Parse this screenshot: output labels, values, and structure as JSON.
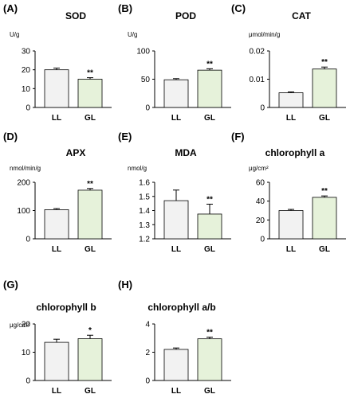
{
  "colors": {
    "LL": "#f2f2f2",
    "GL": "#e6f2da",
    "stroke": "#000000"
  },
  "chart_data": [
    {
      "type": "bar",
      "panel": "(A)",
      "title": "SOD",
      "ylabel": "U/g",
      "categories": [
        "LL",
        "GL"
      ],
      "values": [
        20,
        15
      ],
      "errors": [
        0.9,
        0.8
      ],
      "significance": [
        "",
        "**"
      ],
      "ylim": [
        0,
        30
      ],
      "yticks": [
        0,
        10,
        20,
        30
      ]
    },
    {
      "type": "bar",
      "panel": "(B)",
      "title": "POD",
      "ylabel": "U/g",
      "categories": [
        "LL",
        "GL"
      ],
      "values": [
        49,
        66
      ],
      "errors": [
        2.0,
        2.5
      ],
      "significance": [
        "",
        "**"
      ],
      "ylim": [
        0,
        100
      ],
      "yticks": [
        0,
        50,
        100
      ]
    },
    {
      "type": "bar",
      "panel": "(C)",
      "title": "CAT",
      "ylabel": "μmol/min/g",
      "categories": [
        "LL",
        "GL"
      ],
      "values": [
        0.0052,
        0.0136
      ],
      "errors": [
        0.0003,
        0.0007
      ],
      "significance": [
        "",
        "**"
      ],
      "ylim": [
        0,
        0.02
      ],
      "yticks": [
        0,
        0.01,
        0.02
      ]
    },
    {
      "type": "bar",
      "panel": "(D)",
      "title": "APX",
      "ylabel": "nmol/min/g",
      "categories": [
        "LL",
        "GL"
      ],
      "values": [
        103,
        172
      ],
      "errors": [
        4,
        6
      ],
      "significance": [
        "",
        "**"
      ],
      "ylim": [
        0,
        200
      ],
      "yticks": [
        0,
        100,
        200
      ]
    },
    {
      "type": "bar",
      "panel": "(E)",
      "title": "MDA",
      "ylabel": "nmol/g",
      "categories": [
        "LL",
        "GL"
      ],
      "values": [
        1.47,
        1.375
      ],
      "errors": [
        0.075,
        0.07
      ],
      "significance": [
        "",
        "**"
      ],
      "ylim": [
        1.2,
        1.6
      ],
      "yticks": [
        1.2,
        1.3,
        1.4,
        1.5,
        1.6
      ]
    },
    {
      "type": "bar",
      "panel": "(F)",
      "title": "chlorophyll a",
      "ylabel": "μg/cm²",
      "categories": [
        "LL",
        "GL"
      ],
      "values": [
        30,
        44
      ],
      "errors": [
        1.2,
        1.5
      ],
      "significance": [
        "",
        "**"
      ],
      "ylim": [
        0,
        60
      ],
      "yticks": [
        0,
        20,
        40,
        60
      ]
    },
    {
      "type": "bar",
      "panel": "(G)",
      "title": "chlorophyll b",
      "ylabel": "μg/cm²",
      "categories": [
        "LL",
        "GL"
      ],
      "values": [
        13.5,
        14.8
      ],
      "errors": [
        1.1,
        1.2
      ],
      "significance": [
        "",
        "*"
      ],
      "ylim": [
        0,
        20
      ],
      "yticks": [
        0,
        10,
        20
      ]
    },
    {
      "type": "bar",
      "panel": "(H)",
      "title": "chlorophyll a/b",
      "ylabel": "",
      "categories": [
        "LL",
        "GL"
      ],
      "values": [
        2.2,
        2.95
      ],
      "errors": [
        0.1,
        0.12
      ],
      "significance": [
        "",
        "**"
      ],
      "ylim": [
        0,
        4
      ],
      "yticks": [
        0,
        2,
        4
      ]
    }
  ]
}
